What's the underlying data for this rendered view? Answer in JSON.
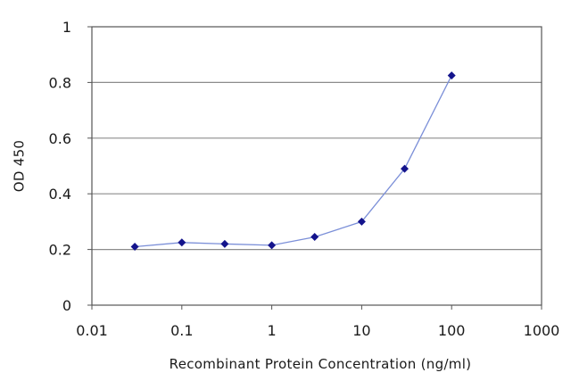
{
  "chart_data": {
    "type": "line",
    "xlabel": "Recombinant Protein Concentration (ng/ml)",
    "ylabel": "OD 450",
    "xscale": "log",
    "xlim": [
      0.01,
      1000
    ],
    "ylim": [
      0,
      1
    ],
    "grid": "horizontal",
    "x_tick_labels": [
      "0.01",
      "0.1",
      "1",
      "10",
      "100",
      "1000"
    ],
    "y_tick_labels": [
      "0",
      "0.2",
      "0.4",
      "0.6",
      "0.8",
      "1"
    ],
    "series": [
      {
        "x": [
          0.03,
          0.1,
          0.3,
          1,
          3,
          10,
          30,
          100
        ],
        "y": [
          0.21,
          0.225,
          0.22,
          0.215,
          0.245,
          0.3,
          0.49,
          0.825
        ]
      }
    ],
    "colors": {
      "line": "#7b8fd8",
      "marker": "#14148c",
      "grid": "#8c8c8c",
      "frame": "#555555"
    }
  }
}
